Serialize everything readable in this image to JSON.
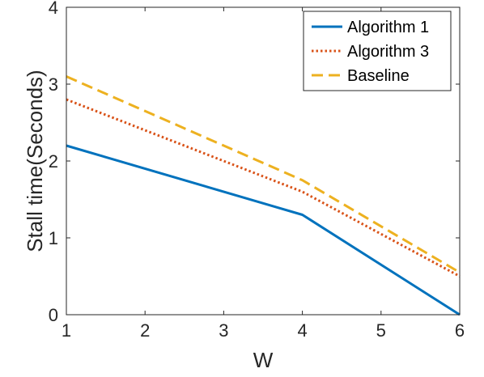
{
  "chart_data": {
    "type": "line",
    "title": "",
    "xlabel": "W",
    "ylabel": "Stall time(Seconds)",
    "xlim": [
      1,
      6
    ],
    "ylim": [
      0,
      4
    ],
    "xticks": [
      1,
      2,
      3,
      4,
      5,
      6
    ],
    "yticks": [
      0,
      1,
      2,
      3,
      4
    ],
    "xtick_labels": [
      "1",
      "2",
      "3",
      "4",
      "5",
      "6"
    ],
    "ytick_labels": [
      "0",
      "1",
      "2",
      "3",
      "4"
    ],
    "grid": false,
    "legend_position": "top-right",
    "series": [
      {
        "name": "Algorithm 1",
        "color": "#0072BD",
        "style": "solid",
        "x": [
          1,
          4,
          6
        ],
        "y": [
          2.2,
          1.3,
          0.0
        ]
      },
      {
        "name": "Algorithm 3",
        "color": "#D95319",
        "style": "dotted",
        "x": [
          1,
          4,
          6
        ],
        "y": [
          2.8,
          1.6,
          0.5
        ]
      },
      {
        "name": "Baseline",
        "color": "#EDB120",
        "style": "dashed",
        "x": [
          1,
          4,
          6
        ],
        "y": [
          3.1,
          1.75,
          0.55
        ]
      }
    ]
  }
}
